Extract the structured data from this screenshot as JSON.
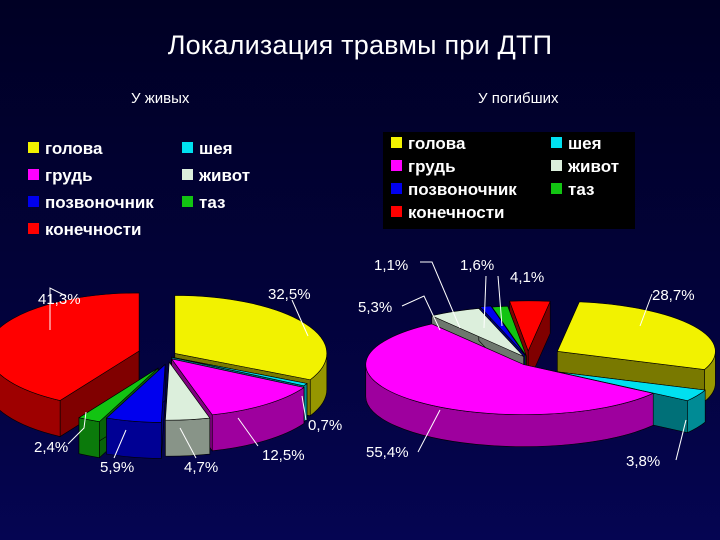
{
  "title": "Локализация травмы при ДТП",
  "colors": {
    "голова": "#f2f200",
    "шея": "#00e0f0",
    "живот": "#dcefdc",
    "таз": "#12c412",
    "позвоночник": "#0000ee",
    "грудь": "#ff00ff",
    "конечности": "#ff0000"
  },
  "chart_data": [
    {
      "type": "pie",
      "subtitle": "У живых",
      "legend": [
        "голова",
        "шея",
        "грудь",
        "живот",
        "позвоночник",
        "таз",
        "конечности"
      ],
      "slices": [
        {
          "category": "голова",
          "value": 32.5,
          "label": "32,5%"
        },
        {
          "category": "шея",
          "value": 0.7,
          "label": "0,7%"
        },
        {
          "category": "грудь",
          "value": 12.5,
          "label": "12,5%"
        },
        {
          "category": "живот",
          "value": 4.7,
          "label": "4,7%"
        },
        {
          "category": "позвоночник",
          "value": 5.9,
          "label": "5,9%"
        },
        {
          "category": "таз",
          "value": 2.4,
          "label": "2,4%"
        },
        {
          "category": "конечности",
          "value": 41.3,
          "label": "41,3%"
        }
      ]
    },
    {
      "type": "pie",
      "subtitle": "У погибших",
      "legend": [
        "голова",
        "шея",
        "грудь",
        "живот",
        "позвоночник",
        "таз",
        "конечности"
      ],
      "slices": [
        {
          "category": "голова",
          "value": 28.7,
          "label": "28,7%"
        },
        {
          "category": "шея",
          "value": 3.8,
          "label": "3,8%"
        },
        {
          "category": "грудь",
          "value": 55.4,
          "label": "55,4%"
        },
        {
          "category": "живот",
          "value": 5.3,
          "label": "5,3%"
        },
        {
          "category": "позвоночник",
          "value": 1.1,
          "label": "1,1%"
        },
        {
          "category": "таз",
          "value": 1.6,
          "label": "1,6%"
        },
        {
          "category": "конечности",
          "value": 4.1,
          "label": "4,1%"
        }
      ]
    }
  ]
}
